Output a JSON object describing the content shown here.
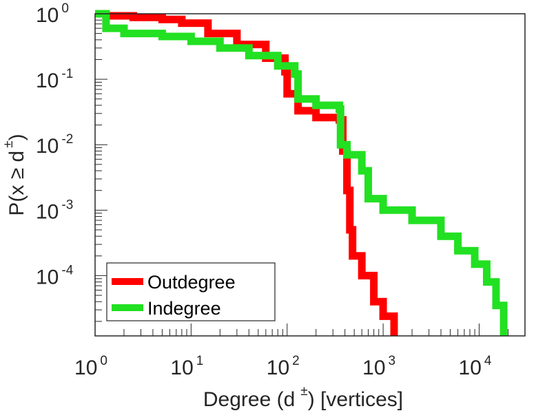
{
  "chart_data": {
    "type": "line",
    "scale": {
      "x": "log",
      "y": "log"
    },
    "xlim": [
      1,
      30000
    ],
    "ylim": [
      1.2e-05,
      1
    ],
    "x_ticks": [
      {
        "value": 1,
        "base": "10",
        "exp": "0"
      },
      {
        "value": 10,
        "base": "10",
        "exp": "1"
      },
      {
        "value": 100,
        "base": "10",
        "exp": "2"
      },
      {
        "value": 1000,
        "base": "10",
        "exp": "3"
      },
      {
        "value": 10000,
        "base": "10",
        "exp": "4"
      }
    ],
    "y_ticks": [
      {
        "value": 1,
        "base": "10",
        "exp": "0"
      },
      {
        "value": 0.1,
        "base": "10",
        "exp": "-1"
      },
      {
        "value": 0.01,
        "base": "10",
        "exp": "-2"
      },
      {
        "value": 0.001,
        "base": "10",
        "exp": "-3"
      },
      {
        "value": 0.0001,
        "base": "10",
        "exp": "-4"
      }
    ],
    "xlabel": {
      "prefix": "Degree (d",
      "sup": "±",
      "suffix": ") [vertices]"
    },
    "ylabel": {
      "prefix": "P(x ≥ d",
      "sup": "±",
      "suffix": ")"
    },
    "legend": {
      "position": "bottom-left"
    },
    "series": [
      {
        "name": "Outdegree",
        "color": "#ff0000",
        "points": [
          [
            1,
            1
          ],
          [
            1.3,
            0.93
          ],
          [
            2.5,
            0.88
          ],
          [
            5,
            0.82
          ],
          [
            8,
            0.72
          ],
          [
            15,
            0.5
          ],
          [
            30,
            0.34
          ],
          [
            60,
            0.21
          ],
          [
            95,
            0.13
          ],
          [
            100,
            0.06
          ],
          [
            130,
            0.033
          ],
          [
            200,
            0.026
          ],
          [
            350,
            0.024
          ],
          [
            380,
            0.008
          ],
          [
            420,
            0.002
          ],
          [
            450,
            0.0005
          ],
          [
            480,
            0.0002
          ],
          [
            600,
            0.0001
          ],
          [
            800,
            4e-05
          ],
          [
            1000,
            2.4e-05
          ],
          [
            1300,
            1.3e-05
          ]
        ]
      },
      {
        "name": "Indegree",
        "color": "#22e022",
        "points": [
          [
            1,
            1
          ],
          [
            1.3,
            0.6
          ],
          [
            2,
            0.5
          ],
          [
            5,
            0.45
          ],
          [
            10,
            0.38
          ],
          [
            20,
            0.3
          ],
          [
            40,
            0.23
          ],
          [
            80,
            0.16
          ],
          [
            120,
            0.12
          ],
          [
            130,
            0.05
          ],
          [
            200,
            0.04
          ],
          [
            350,
            0.035
          ],
          [
            360,
            0.01
          ],
          [
            420,
            0.007
          ],
          [
            600,
            0.004
          ],
          [
            700,
            0.0015
          ],
          [
            1000,
            0.001
          ],
          [
            2000,
            0.0007
          ],
          [
            4000,
            0.0004
          ],
          [
            6000,
            0.00024
          ],
          [
            9000,
            0.00015
          ],
          [
            12000,
            8e-05
          ],
          [
            15000,
            3.5e-05
          ],
          [
            18000,
            1.3e-05
          ]
        ]
      }
    ]
  }
}
